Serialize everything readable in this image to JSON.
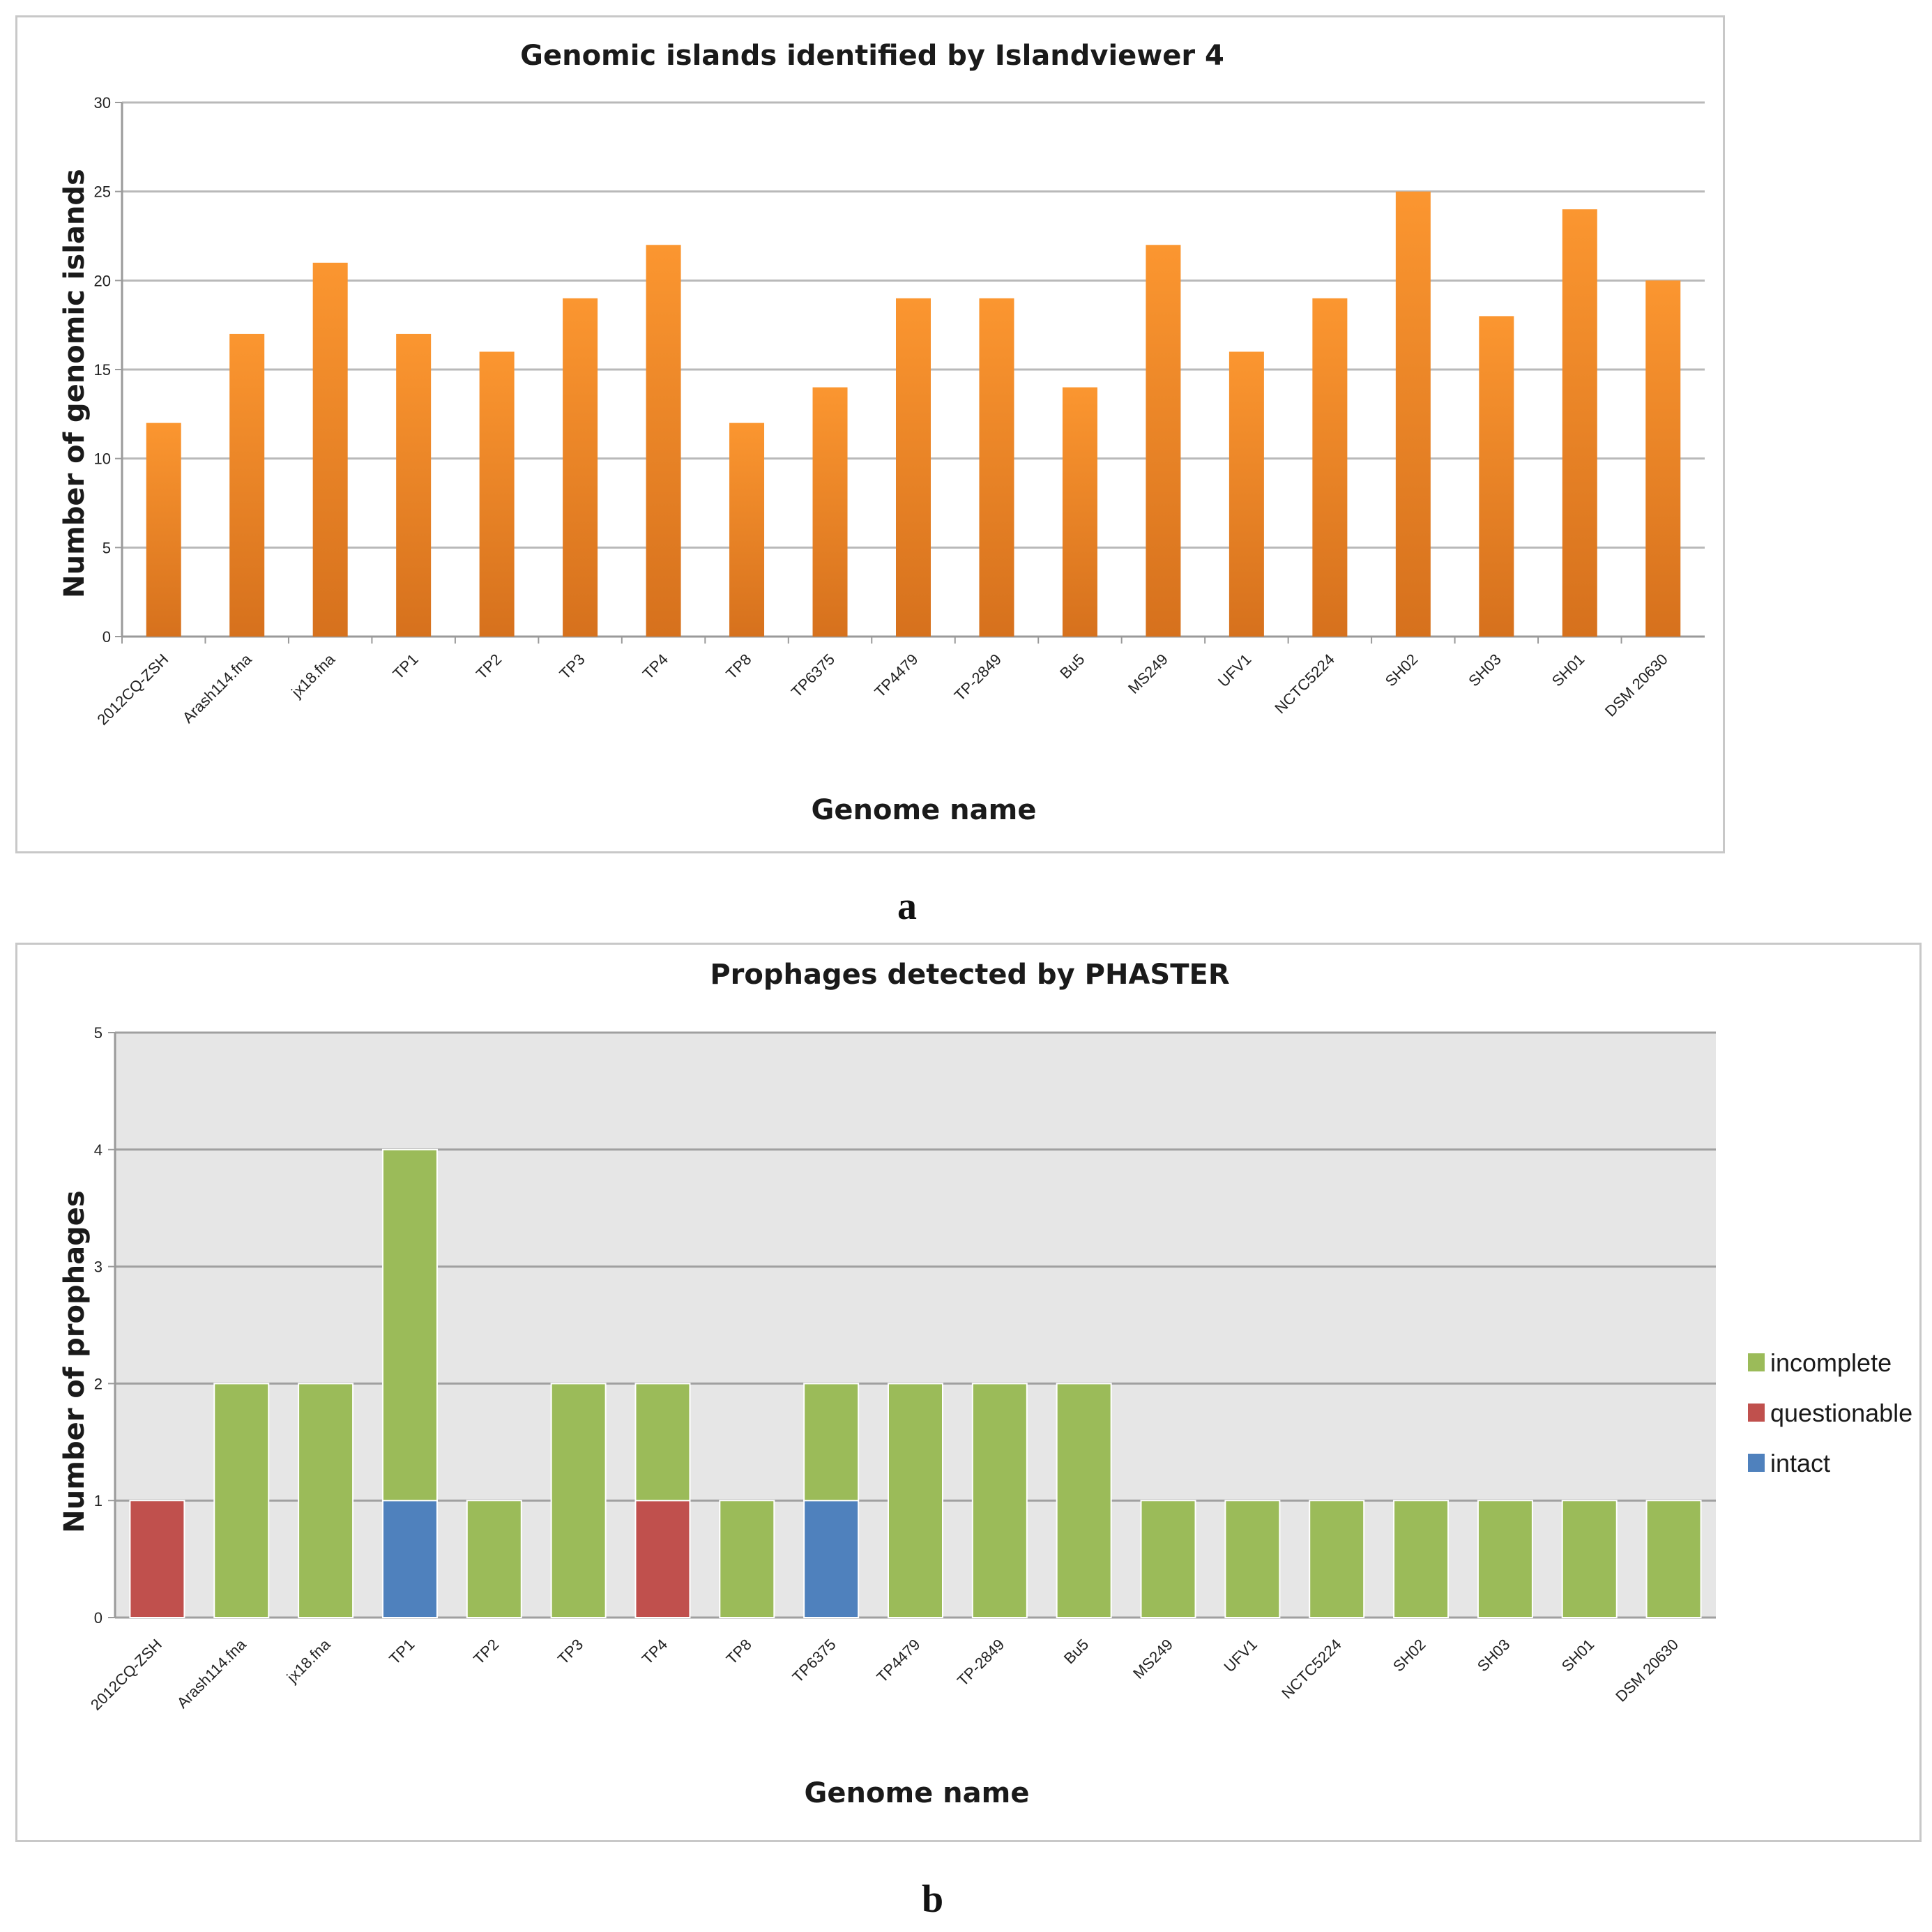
{
  "chart_data": [
    {
      "type": "bar",
      "title": "Genomic islands identified by Islandviewer 4",
      "xlabel": "Genome name",
      "ylabel": "Number of genomic islands",
      "ylim": [
        0,
        30
      ],
      "yticks": [
        0,
        5,
        10,
        15,
        20,
        25,
        30
      ],
      "grid": true,
      "categories": [
        "2012CQ-ZSH",
        "Arash114.fna",
        "jx18.fna",
        "TP1",
        "TP2",
        "TP3",
        "TP4",
        "TP8",
        "TP6375",
        "TP4479",
        "TP-2849",
        "Bu5",
        "MS249",
        "UFV1",
        "NCTC5224",
        "SH02",
        "SH03",
        "SH01",
        "DSM 20630"
      ],
      "values": [
        12,
        17,
        21,
        17,
        16,
        19,
        22,
        12,
        14,
        19,
        19,
        14,
        22,
        16,
        19,
        25,
        18,
        24,
        20
      ],
      "color": "#f28c28"
    },
    {
      "type": "bar",
      "stacked": true,
      "title": "Prophages detected by PHASTER",
      "xlabel": "Genome name",
      "ylabel": "Number of prophages",
      "ylim": [
        0,
        5
      ],
      "yticks": [
        0,
        1,
        2,
        3,
        4,
        5
      ],
      "grid": true,
      "legend_position": "right",
      "categories": [
        "2012CQ-ZSH",
        "Arash114.fna",
        "jx18.fna",
        "TP1",
        "TP2",
        "TP3",
        "TP4",
        "TP8",
        "TP6375",
        "TP4479",
        "TP-2849",
        "Bu5",
        "MS249",
        "UFV1",
        "NCTC5224",
        "SH02",
        "SH03",
        "SH01",
        "DSM 20630"
      ],
      "series": [
        {
          "name": "intact",
          "color": "#4f81bd",
          "values": [
            0,
            0,
            0,
            1,
            0,
            0,
            0,
            0,
            1,
            0,
            0,
            0,
            0,
            0,
            0,
            0,
            0,
            0,
            0
          ]
        },
        {
          "name": "questionable",
          "color": "#c0504d",
          "values": [
            1,
            0,
            0,
            0,
            0,
            0,
            1,
            0,
            0,
            0,
            0,
            0,
            0,
            0,
            0,
            0,
            0,
            0,
            0
          ]
        },
        {
          "name": "incomplete",
          "color": "#9bbb59",
          "values": [
            0,
            2,
            2,
            3,
            1,
            2,
            1,
            1,
            1,
            2,
            2,
            2,
            1,
            1,
            1,
            1,
            1,
            1,
            1
          ]
        }
      ],
      "legend_order": [
        "incomplete",
        "questionable",
        "intact"
      ]
    }
  ],
  "panel_labels": [
    "a",
    "b"
  ]
}
